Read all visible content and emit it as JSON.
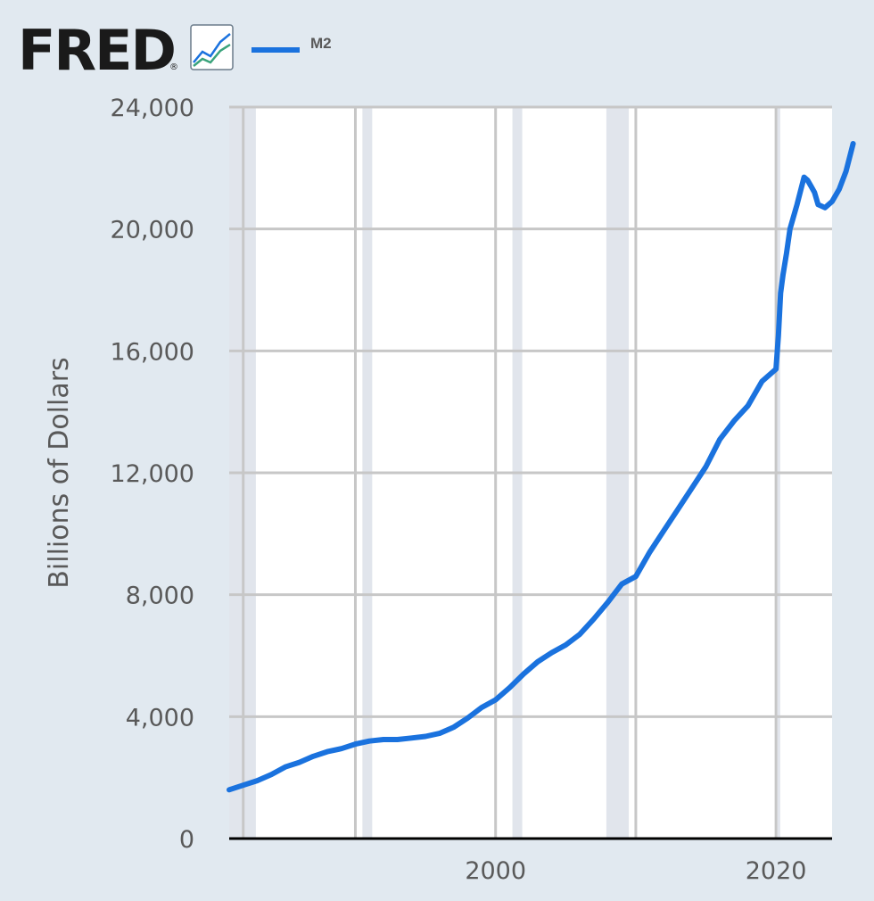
{
  "header": {
    "logo_text": "FRED",
    "logo_mark": "®",
    "logo_icon": "line-chart-icon"
  },
  "colors": {
    "series": "#1a72de",
    "background": "#e1e9f0",
    "plot_bg": "#ffffff",
    "grid": "#c7c7c7",
    "recession": "#e1e5ec"
  },
  "chart_data": {
    "type": "line",
    "title": "",
    "xlabel": "",
    "ylabel": "Billions of Dollars",
    "ylim": [
      0,
      24000
    ],
    "xlim": [
      1981.0,
      2024.0
    ],
    "yticks": [
      {
        "value": 0,
        "label": "0"
      },
      {
        "value": 4000,
        "label": "4,000"
      },
      {
        "value": 8000,
        "label": "8,000"
      },
      {
        "value": 12000,
        "label": "12,000"
      },
      {
        "value": 16000,
        "label": "16,000"
      },
      {
        "value": 20000,
        "label": "20,000"
      },
      {
        "value": 24000,
        "label": "24,000"
      }
    ],
    "xticks": [
      {
        "value": 2000,
        "label": "2000"
      },
      {
        "value": 2020,
        "label": "2020"
      }
    ],
    "vertical_gridlines": [
      1982,
      1990,
      2000,
      2010,
      2020
    ],
    "recessions": [
      [
        1981.0,
        1982.9
      ],
      [
        1990.5,
        1991.2
      ],
      [
        2001.2,
        2001.9
      ],
      [
        2007.9,
        2009.5
      ],
      [
        2020.1,
        2020.3
      ]
    ],
    "legend": {
      "position": "top-left",
      "entries": [
        "M2"
      ]
    },
    "grid": true,
    "series": [
      {
        "name": "M2",
        "x": [
          1981.0,
          1982.0,
          1983.0,
          1984.0,
          1985.0,
          1986.0,
          1987.0,
          1988.0,
          1989.0,
          1990.0,
          1991.0,
          1992.0,
          1993.0,
          1994.0,
          1995.0,
          1996.0,
          1997.0,
          1998.0,
          1999.0,
          2000.0,
          2001.0,
          2002.0,
          2003.0,
          2004.0,
          2005.0,
          2006.0,
          2007.0,
          2008.0,
          2009.0,
          2010.0,
          2011.0,
          2012.0,
          2013.0,
          2014.0,
          2015.0,
          2016.0,
          2017.0,
          2018.0,
          2019.0,
          2020.0,
          2020.17,
          2020.33,
          2020.5,
          2020.75,
          2021.0,
          2021.5,
          2022.0,
          2022.25,
          2022.5,
          2022.75,
          2023.0,
          2023.5,
          2024.0,
          2024.5,
          2025.0,
          2025.5
        ],
        "values": [
          1600,
          1750,
          1900,
          2100,
          2350,
          2500,
          2700,
          2850,
          2950,
          3100,
          3200,
          3250,
          3250,
          3300,
          3350,
          3450,
          3650,
          3950,
          4300,
          4550,
          4950,
          5400,
          5800,
          6100,
          6350,
          6700,
          7200,
          7750,
          8350,
          8600,
          9400,
          10100,
          10800,
          11500,
          12200,
          13100,
          13700,
          14200,
          15000,
          15400,
          16500,
          17900,
          18500,
          19200,
          20000,
          20800,
          21700,
          21600,
          21400,
          21200,
          20800,
          20700,
          20900,
          21300,
          21900,
          22800
        ]
      }
    ]
  }
}
